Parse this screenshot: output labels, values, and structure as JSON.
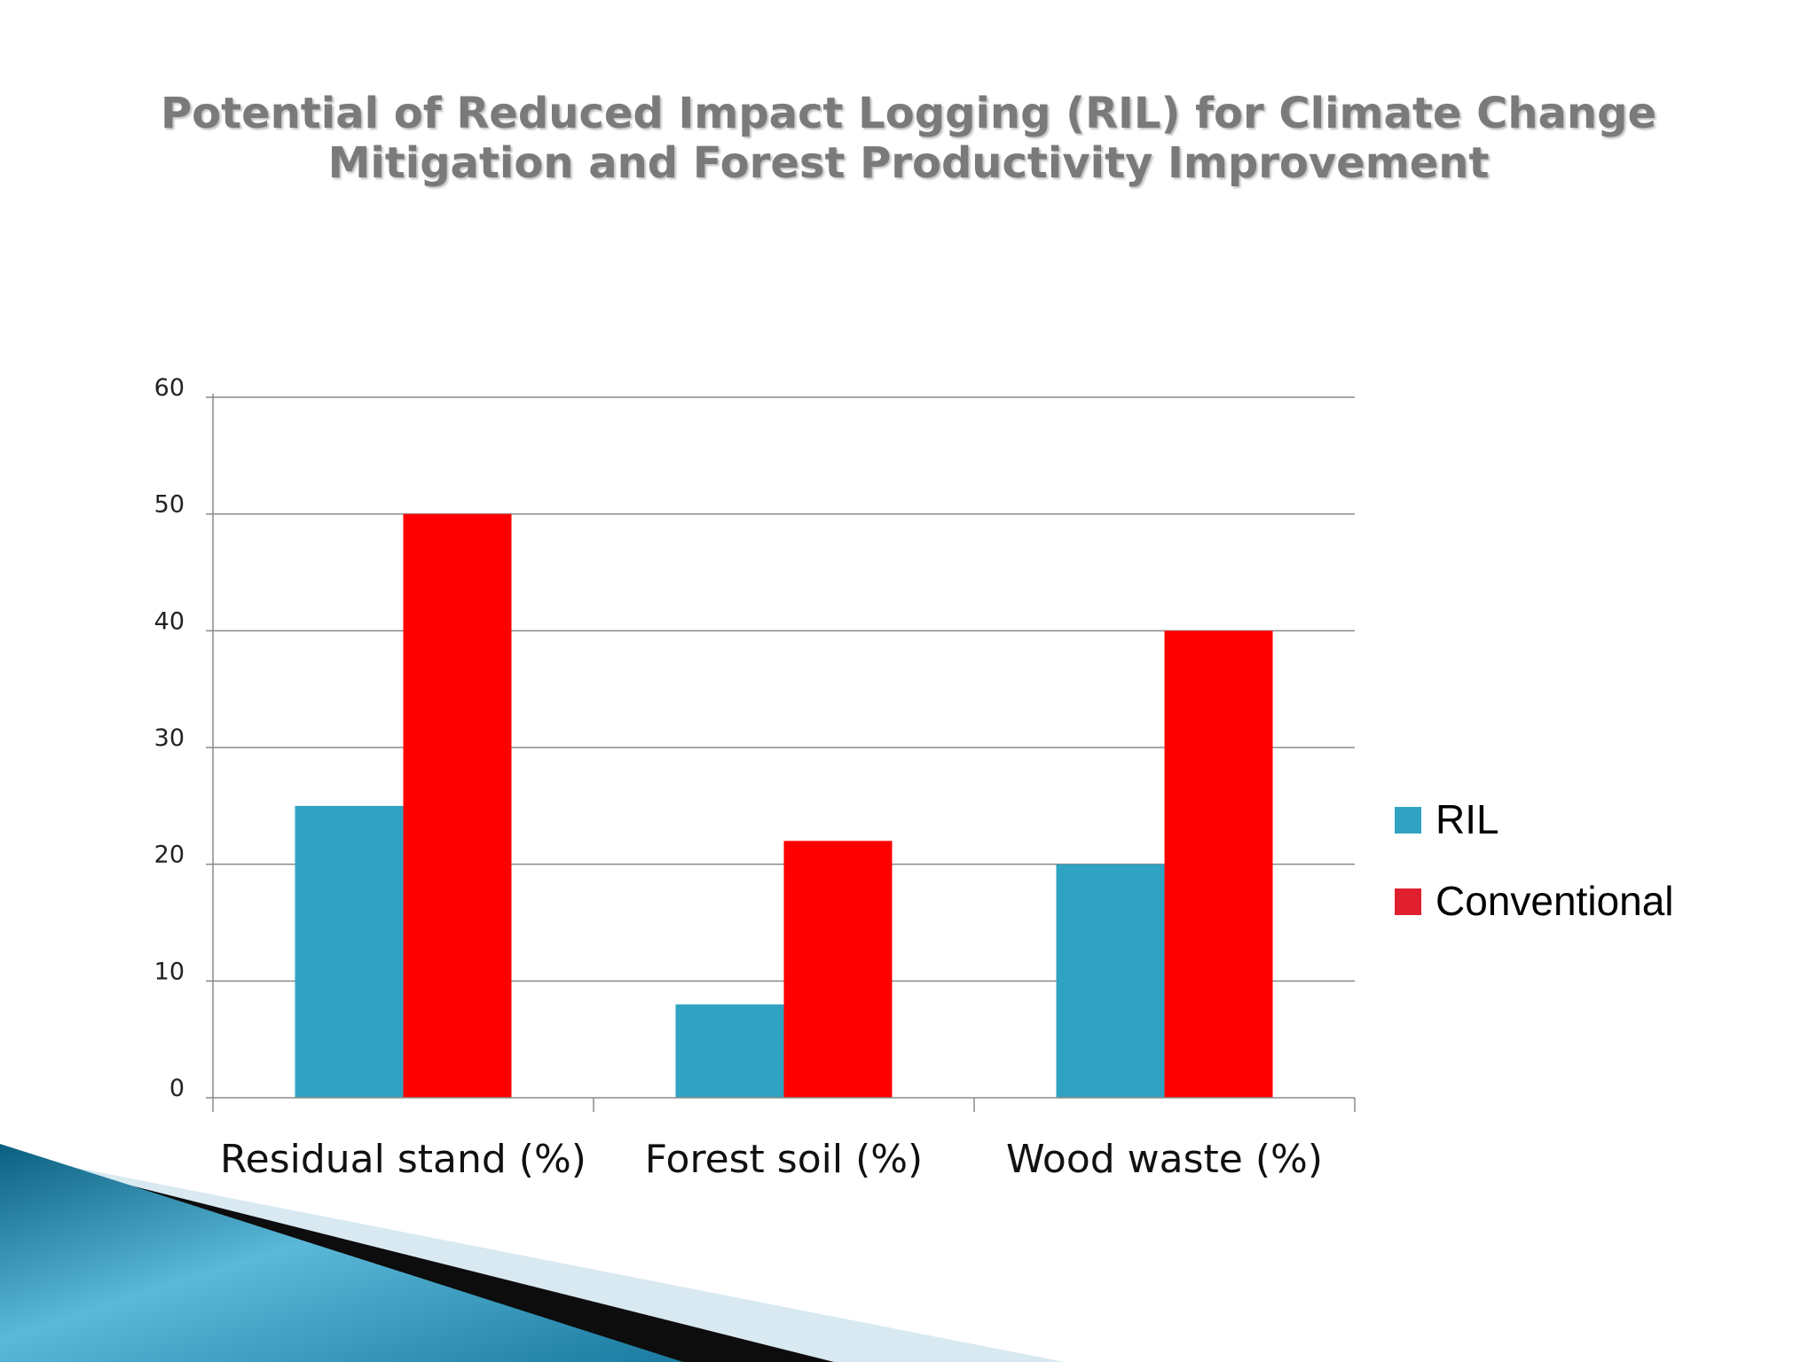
{
  "chart_data": {
    "type": "bar",
    "title_lines": [
      "Potential of Reduced Impact Logging (RIL) for Climate Change",
      "Mitigation and Forest Productivity Improvement"
    ],
    "categories": [
      "Residual stand (%)",
      "Forest soil (%)",
      "Wood waste (%)"
    ],
    "series": [
      {
        "name": "RIL",
        "values": [
          25,
          8,
          20
        ],
        "color": "#31a3c2"
      },
      {
        "name": "Conventional",
        "values": [
          50,
          22,
          40
        ],
        "color": "#ff0000"
      }
    ],
    "ylim": [
      0,
      60
    ],
    "yticks": [
      0,
      10,
      20,
      30,
      40,
      50,
      60
    ],
    "grid": true,
    "legend_position": "right",
    "legend_colors": [
      "#31a3c2",
      "#e0202e"
    ]
  }
}
